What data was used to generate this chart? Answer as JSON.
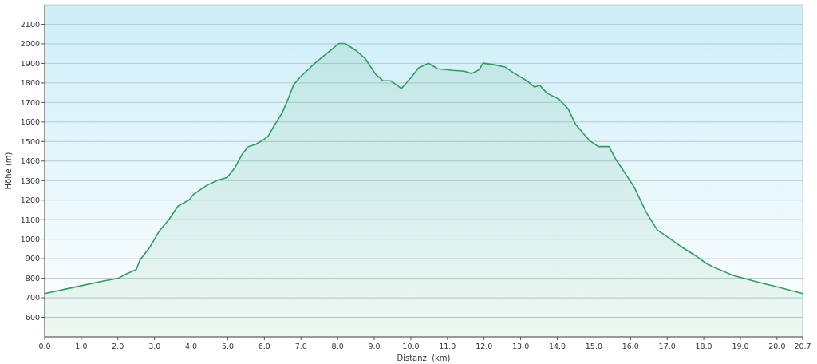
{
  "chart_data": {
    "type": "area",
    "xlabel": "Distanz  (km)",
    "ylabel": "Höhe (m)",
    "color": "#2e9e5b",
    "x": [
      0,
      0.8,
      1.63,
      2.0,
      2.25,
      2.5,
      2.6,
      2.87,
      3.12,
      3.39,
      3.64,
      3.95,
      4.07,
      4.42,
      4.74,
      4.98,
      5.19,
      5.4,
      5.56,
      5.77,
      5.98,
      6.1,
      6.29,
      6.49,
      6.64,
      6.8,
      6.97,
      7.38,
      7.73,
      8.04,
      8.2,
      8.5,
      8.75,
      9.04,
      9.24,
      9.45,
      9.74,
      10.01,
      10.21,
      10.48,
      10.73,
      11.15,
      11.46,
      11.66,
      11.87,
      11.97,
      12.28,
      12.59,
      12.8,
      13.17,
      13.38,
      13.52,
      13.73,
      14.04,
      14.29,
      14.5,
      14.87,
      15.12,
      15.41,
      15.61,
      15.9,
      16.11,
      16.42,
      16.73,
      17.04,
      17.35,
      17.76,
      18.07,
      18.28,
      18.8,
      19.42,
      20.04,
      20.7
    ],
    "values": [
      722,
      754,
      787,
      799,
      824,
      844,
      893,
      958,
      1039,
      1100,
      1169,
      1202,
      1230,
      1275,
      1303,
      1315,
      1364,
      1437,
      1474,
      1486,
      1510,
      1527,
      1588,
      1649,
      1714,
      1791,
      1828,
      1901,
      1954,
      2002,
      2002,
      1966,
      1925,
      1844,
      1811,
      1811,
      1771,
      1828,
      1876,
      1901,
      1872,
      1864,
      1860,
      1848,
      1868,
      1901,
      1893,
      1880,
      1852,
      1811,
      1779,
      1787,
      1746,
      1718,
      1669,
      1588,
      1506,
      1474,
      1474,
      1405,
      1324,
      1263,
      1141,
      1047,
      1007,
      966,
      917,
      876,
      856,
      815,
      783,
      754,
      722
    ],
    "xlim": [
      0,
      20.7
    ],
    "xticks": [
      {
        "value": 0,
        "label": "0.0"
      },
      {
        "value": 1,
        "label": "1.0"
      },
      {
        "value": 2,
        "label": "2.0"
      },
      {
        "value": 3,
        "label": "3.0"
      },
      {
        "value": 4,
        "label": "4.0"
      },
      {
        "value": 5,
        "label": "5.0"
      },
      {
        "value": 6,
        "label": "6.0"
      },
      {
        "value": 7,
        "label": "7.0"
      },
      {
        "value": 8,
        "label": "8.0"
      },
      {
        "value": 9,
        "label": "9.0"
      },
      {
        "value": 10,
        "label": "10.0"
      },
      {
        "value": 11,
        "label": "11.0"
      },
      {
        "value": 12,
        "label": "12.0"
      },
      {
        "value": 13,
        "label": "13.0"
      },
      {
        "value": 14,
        "label": "14.0"
      },
      {
        "value": 15,
        "label": "15.0"
      },
      {
        "value": 16,
        "label": "16.0"
      },
      {
        "value": 17,
        "label": "17.0"
      },
      {
        "value": 18,
        "label": "18.0"
      },
      {
        "value": 19,
        "label": "19.0"
      },
      {
        "value": 20,
        "label": "20.0"
      },
      {
        "value": 20.7,
        "label": "20.7"
      }
    ],
    "ylim": [
      500,
      2200
    ],
    "yticks": [
      600,
      700,
      800,
      900,
      1000,
      1100,
      1200,
      1300,
      1400,
      1500,
      1600,
      1700,
      1800,
      1900,
      2000,
      2100
    ],
    "grid": "y"
  }
}
